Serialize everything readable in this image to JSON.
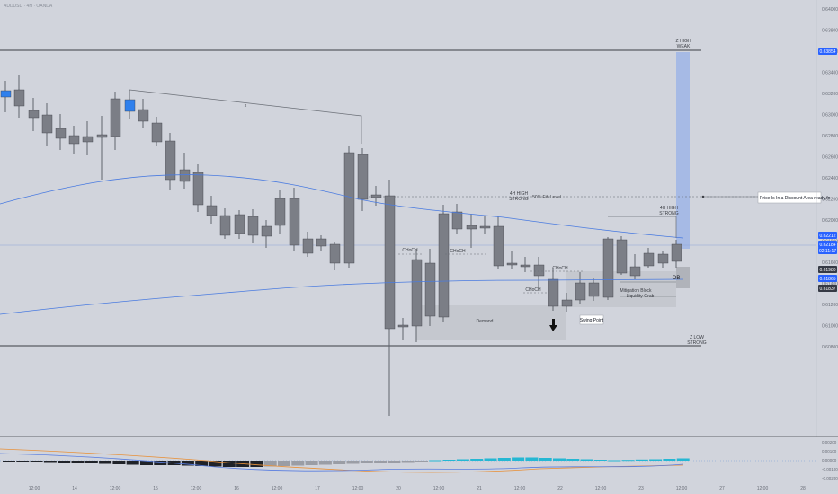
{
  "header": {
    "symbol_line": "AUDUSD · 4H · OANDA"
  },
  "colors": {
    "background": "#d1d4dc",
    "bull": "#2f80ed",
    "bear": "#7b7e86",
    "wick": "#5f636b",
    "ma_blue": "#4a7be0",
    "zone_gray": "#c3c6cd",
    "zone_blue": "#9fb5e6",
    "struct_line": "#6b6f77",
    "hline": "#3b3e44",
    "osc_orange": "#e8913a",
    "osc_blue": "#5a7ee0",
    "osc_cyan": "#25b7d3",
    "osc_dark": "#1f2228",
    "label_blue": "#2962ff",
    "label_dark": "#363a45"
  },
  "price_axis": {
    "ticks": [
      "0.64000",
      "0.63800",
      "0.63600",
      "0.63400",
      "0.63200",
      "0.63000",
      "0.62800",
      "0.62600",
      "0.62400",
      "0.62200",
      "0.62000",
      "0.61800",
      "0.61600",
      "0.61400",
      "0.61200",
      "0.61000",
      "0.60800"
    ],
    "tags": [
      {
        "text": "0.63854",
        "style": "blue"
      },
      {
        "text": "0.62212",
        "style": "blue"
      },
      {
        "text": "0.62184",
        "style": "blue"
      },
      {
        "text": "02:11:17",
        "style": "blue"
      },
      {
        "text": "0.61980",
        "style": "dark"
      },
      {
        "text": "0.61865",
        "style": "blue"
      },
      {
        "text": "0.61837",
        "style": "dark"
      }
    ],
    "osc_ticks": [
      "0.00200",
      "0.00100",
      "0.00000",
      "-0.00100",
      "-0.00200"
    ]
  },
  "time_axis": {
    "labels": [
      "12:00",
      "14",
      "12:00",
      "15",
      "12:00",
      "16",
      "12:00",
      "17",
      "12:00",
      "20",
      "12:00",
      "21",
      "12:00",
      "22",
      "12:00",
      "23",
      "12:00",
      "27",
      "12:00",
      "28"
    ]
  },
  "annotations": {
    "strong_high_line1": "Z HIGH",
    "strong_high_line2": "WEAK",
    "low_line1": "Z LOW",
    "low_line2": "STRONG",
    "fib_label": "50% Fib Level",
    "discount_note": "Price Is In a Discount Area ready fo",
    "h4_high_a_line1": "4H HIGH",
    "h4_high_a_line2": "STRONG",
    "h4_high_b_line1": "4H HIGH",
    "h4_high_b_line2": "STRONG",
    "choch": "CHoCH",
    "choch_count": 4,
    "demand": "Demand",
    "swing_point": "Swing Point",
    "mitigation_block": "Mitigation Block",
    "liquidity_grab": "Liquidity Grab",
    "ob": "OB",
    "structure_x": "x"
  }
}
